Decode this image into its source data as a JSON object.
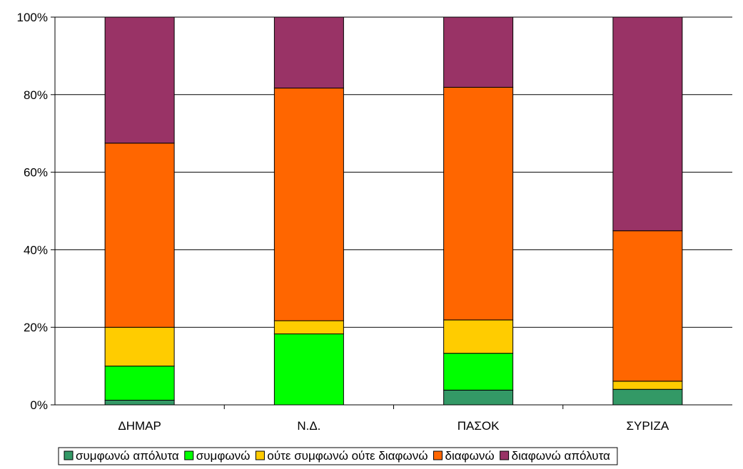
{
  "chart_data": {
    "type": "bar",
    "stacked": "percent",
    "categories": [
      "ΔΗΜΑΡ",
      "Ν.Δ.",
      "ΠΑΣΟΚ",
      "ΣΥΡΙΖΑ"
    ],
    "yticks": [
      "0%",
      "20%",
      "40%",
      "60%",
      "80%",
      "100%"
    ],
    "ylim": [
      0,
      100
    ],
    "grid": true,
    "legend_position": "bottom",
    "series": [
      {
        "name": "συμφωνώ απόλυτα",
        "color": "#339966",
        "values": [
          1.2,
          0,
          3.8,
          4
        ]
      },
      {
        "name": "συμφωνώ",
        "color": "#00ff00",
        "values": [
          8.8,
          18.3,
          9.5,
          0
        ]
      },
      {
        "name": "ούτε συμφωνώ ούτε διαφωνώ",
        "color": "#ffcc00",
        "values": [
          10,
          3.4,
          8.6,
          2.1
        ]
      },
      {
        "name": "διαφωνώ",
        "color": "#ff6600",
        "values": [
          47.5,
          60,
          60,
          38.8
        ]
      },
      {
        "name": "διαφωνώ απόλυτα",
        "color": "#993366",
        "values": [
          32.5,
          18.3,
          18.1,
          55.1
        ]
      }
    ]
  }
}
